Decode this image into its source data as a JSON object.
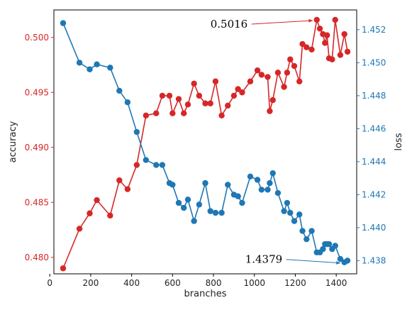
{
  "chart_data": {
    "type": "line",
    "xlabel": "branches",
    "ylabel_left": "accuracy",
    "ylabel_right": "loss",
    "xlim": [
      20,
      1500
    ],
    "ylim_left": [
      0.4785,
      0.5025
    ],
    "ylim_right": [
      1.4372,
      1.4532
    ],
    "x_ticks": [
      0,
      200,
      400,
      600,
      800,
      1000,
      1200,
      1400
    ],
    "y_ticks_left": [
      0.48,
      0.485,
      0.49,
      0.495,
      0.5
    ],
    "y_ticks_right": [
      1.438,
      1.44,
      1.442,
      1.444,
      1.446,
      1.448,
      1.45,
      1.452
    ],
    "colors": {
      "accuracy": "#d62728",
      "loss": "#1f77b4"
    },
    "grid": false,
    "series": [
      {
        "axis": "left",
        "color": "#d62728",
        "points": [
          [
            65,
            0.479
          ],
          [
            145,
            0.4826
          ],
          [
            195,
            0.484
          ],
          [
            230,
            0.4852
          ],
          [
            295,
            0.4838
          ],
          [
            340,
            0.487
          ],
          [
            380,
            0.4862
          ],
          [
            425,
            0.4884
          ],
          [
            470,
            0.4929
          ],
          [
            520,
            0.4931
          ],
          [
            550,
            0.4947
          ],
          [
            585,
            0.4947
          ],
          [
            600,
            0.4931
          ],
          [
            630,
            0.4944
          ],
          [
            655,
            0.4931
          ],
          [
            675,
            0.4939
          ],
          [
            705,
            0.4958
          ],
          [
            730,
            0.4947
          ],
          [
            760,
            0.494
          ],
          [
            785,
            0.494
          ],
          [
            810,
            0.496
          ],
          [
            840,
            0.4929
          ],
          [
            870,
            0.4938
          ],
          [
            900,
            0.4947
          ],
          [
            920,
            0.4953
          ],
          [
            940,
            0.495
          ],
          [
            980,
            0.496
          ],
          [
            1015,
            0.497
          ],
          [
            1035,
            0.4966
          ],
          [
            1065,
            0.4964
          ],
          [
            1075,
            0.4933
          ],
          [
            1090,
            0.4943
          ],
          [
            1115,
            0.4968
          ],
          [
            1145,
            0.4955
          ],
          [
            1160,
            0.4968
          ],
          [
            1175,
            0.498
          ],
          [
            1195,
            0.4974
          ],
          [
            1220,
            0.496
          ],
          [
            1235,
            0.4994
          ],
          [
            1255,
            0.4991
          ],
          [
            1280,
            0.4989
          ],
          [
            1305,
            0.5016
          ],
          [
            1320,
            0.5008
          ],
          [
            1335,
            0.5003
          ],
          [
            1345,
            0.4995
          ],
          [
            1355,
            0.5002
          ],
          [
            1365,
            0.4981
          ],
          [
            1380,
            0.498
          ],
          [
            1395,
            0.5016
          ],
          [
            1420,
            0.4984
          ],
          [
            1440,
            0.5003
          ],
          [
            1455,
            0.4987
          ]
        ]
      },
      {
        "axis": "right",
        "color": "#1f77b4",
        "points": [
          [
            65,
            1.4524
          ],
          [
            145,
            1.45
          ],
          [
            195,
            1.4496
          ],
          [
            230,
            1.4499
          ],
          [
            295,
            1.4497
          ],
          [
            340,
            1.4483
          ],
          [
            380,
            1.4476
          ],
          [
            425,
            1.4458
          ],
          [
            470,
            1.4441
          ],
          [
            520,
            1.4438
          ],
          [
            550,
            1.4438
          ],
          [
            585,
            1.4427
          ],
          [
            600,
            1.4426
          ],
          [
            630,
            1.4415
          ],
          [
            655,
            1.4412
          ],
          [
            675,
            1.4417
          ],
          [
            705,
            1.4404
          ],
          [
            730,
            1.4414
          ],
          [
            760,
            1.4427
          ],
          [
            785,
            1.441
          ],
          [
            810,
            1.4409
          ],
          [
            840,
            1.4409
          ],
          [
            870,
            1.4426
          ],
          [
            900,
            1.442
          ],
          [
            920,
            1.4419
          ],
          [
            940,
            1.4415
          ],
          [
            980,
            1.4431
          ],
          [
            1015,
            1.4429
          ],
          [
            1035,
            1.4423
          ],
          [
            1065,
            1.4423
          ],
          [
            1075,
            1.4427
          ],
          [
            1090,
            1.4433
          ],
          [
            1115,
            1.4421
          ],
          [
            1145,
            1.441
          ],
          [
            1160,
            1.4415
          ],
          [
            1175,
            1.4409
          ],
          [
            1195,
            1.4404
          ],
          [
            1220,
            1.4408
          ],
          [
            1235,
            1.4398
          ],
          [
            1255,
            1.4393
          ],
          [
            1280,
            1.4398
          ],
          [
            1305,
            1.4385
          ],
          [
            1320,
            1.4385
          ],
          [
            1335,
            1.4387
          ],
          [
            1345,
            1.439
          ],
          [
            1355,
            1.439
          ],
          [
            1365,
            1.439
          ],
          [
            1380,
            1.4387
          ],
          [
            1395,
            1.4389
          ],
          [
            1420,
            1.4381
          ],
          [
            1440,
            1.4379
          ],
          [
            1455,
            1.438
          ]
        ]
      }
    ],
    "annotations": [
      {
        "text": "0.5016",
        "target": [
          1305,
          0.5016
        ],
        "axis": "left",
        "color": "#d62728"
      },
      {
        "text": "1.4379",
        "target": [
          1440,
          1.4379
        ],
        "axis": "right",
        "color": "#1f77b4"
      }
    ]
  }
}
